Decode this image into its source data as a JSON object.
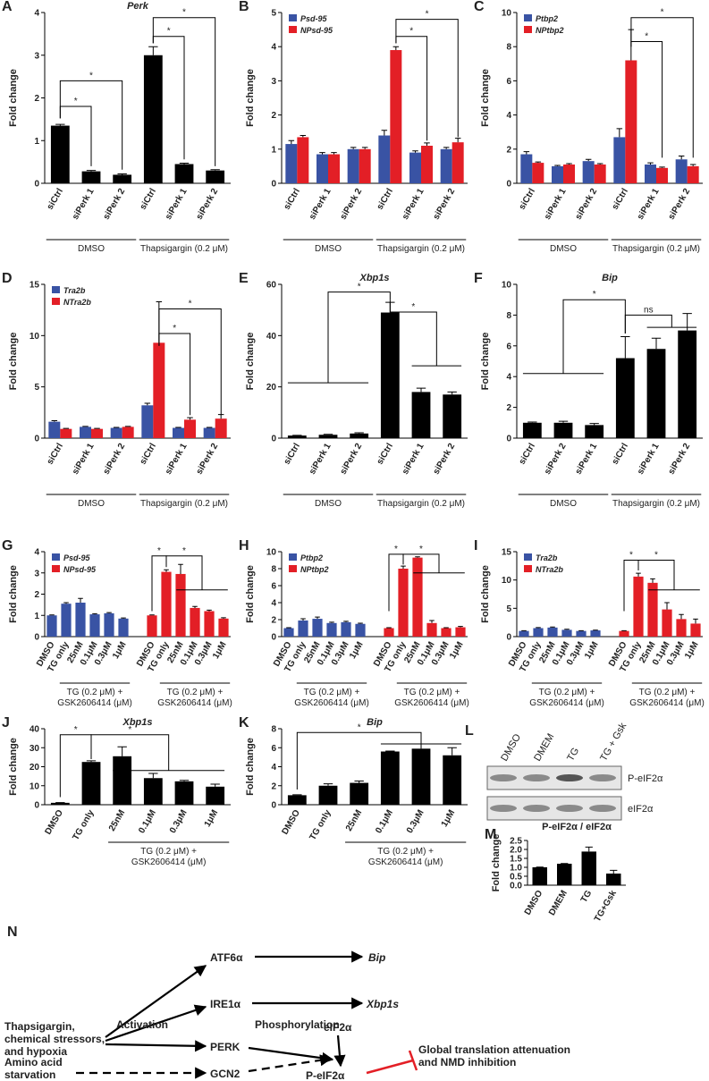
{
  "chart_data": [
    {
      "type": "bar",
      "panel": "A",
      "title": "Perk",
      "y_label": "Fold change",
      "categories": [
        "siCtrl",
        "siPerk 1",
        "siPerk 2",
        "siCtrl",
        "siPerk 1",
        "siPerk 2"
      ],
      "series": [
        {
          "color": "#000000",
          "values": [
            1.35,
            0.28,
            0.2,
            3.0,
            0.45,
            0.3
          ],
          "errors": [
            0.03,
            0.02,
            0.02,
            0.2,
            0.02,
            0.02
          ]
        }
      ],
      "ylim": [
        0,
        4
      ],
      "yticks": [
        0,
        1,
        2,
        3,
        4
      ],
      "groups": [
        [
          "DMSO"
        ],
        [
          "Thapsigargin (0.2 μM)"
        ]
      ],
      "annotations": [
        "*",
        "*",
        "*",
        "*"
      ]
    },
    {
      "type": "bar",
      "panel": "B",
      "y_label": "Fold change",
      "categories": [
        "siCtrl",
        "siPerk 1",
        "siPerk 2",
        "siCtrl",
        "siPerk 1",
        "siPerk 2"
      ],
      "series": [
        {
          "name": "Psd-95",
          "color": "#3953a4",
          "values": [
            1.15,
            0.85,
            1.0,
            1.4,
            0.9,
            1.0
          ],
          "errors": [
            0.1,
            0.05,
            0.05,
            0.15,
            0.05,
            0.05
          ]
        },
        {
          "name": "NPsd-95",
          "color": "#e31f26",
          "values": [
            1.35,
            0.85,
            1.0,
            3.9,
            1.1,
            1.2
          ],
          "errors": [
            0.05,
            0.05,
            0.05,
            0.1,
            0.08,
            0.12
          ]
        }
      ],
      "ylim": [
        0,
        5
      ],
      "yticks": [
        0,
        1,
        2,
        3,
        4,
        5
      ],
      "groups": [
        [
          "DMSO"
        ],
        [
          "Thapsigargin (0.2 μM)"
        ]
      ],
      "annotations": [
        "*",
        "*"
      ]
    },
    {
      "type": "bar",
      "panel": "C",
      "y_label": "Fold change",
      "categories": [
        "siCtrl",
        "siPerk 1",
        "siPerk 2",
        "siCtrl",
        "siPerk 1",
        "siPerk 2"
      ],
      "series": [
        {
          "name": "Ptbp2",
          "color": "#3953a4",
          "values": [
            1.7,
            1.0,
            1.3,
            2.7,
            1.1,
            1.4
          ],
          "errors": [
            0.15,
            0.05,
            0.1,
            0.5,
            0.1,
            0.2
          ]
        },
        {
          "name": "NPtbp2",
          "color": "#e31f26",
          "values": [
            1.2,
            1.1,
            1.1,
            7.2,
            0.9,
            1.0
          ],
          "errors": [
            0.05,
            0.05,
            0.05,
            1.8,
            0.05,
            0.1
          ]
        }
      ],
      "ylim": [
        0,
        10
      ],
      "yticks": [
        0,
        2,
        4,
        6,
        8,
        10
      ],
      "groups": [
        [
          "DMSO"
        ],
        [
          "Thapsigargin (0.2 μM)"
        ]
      ],
      "annotations": [
        "*",
        "*"
      ]
    },
    {
      "type": "bar",
      "panel": "D",
      "y_label": "Fold change",
      "categories": [
        "siCtrl",
        "siPerk 1",
        "siPerk 2",
        "siCtrl",
        "siPerk 1",
        "siPerk 2"
      ],
      "series": [
        {
          "name": "Tra2b",
          "color": "#3953a4",
          "values": [
            1.6,
            1.1,
            1.0,
            3.2,
            1.0,
            1.0
          ],
          "errors": [
            0.1,
            0.05,
            0.05,
            0.2,
            0.05,
            0.05
          ]
        },
        {
          "name": "NTra2b",
          "color": "#e31f26",
          "values": [
            0.9,
            0.9,
            1.1,
            9.3,
            1.8,
            1.9
          ],
          "errors": [
            0.05,
            0.05,
            0.05,
            4.0,
            0.2,
            0.4
          ]
        }
      ],
      "ylim": [
        0,
        15
      ],
      "yticks": [
        0,
        5,
        10,
        15
      ],
      "groups": [
        [
          "DMSO"
        ],
        [
          "Thapsigargin (0.2 μM)"
        ]
      ],
      "annotations": [
        "*",
        "*"
      ]
    },
    {
      "type": "bar",
      "panel": "E",
      "title": "Xbp1s",
      "y_label": "Fold change",
      "categories": [
        "siCtrl",
        "siPerk 1",
        "siPerk 2",
        "siCtrl",
        "siPerk 1",
        "siPerk 2"
      ],
      "series": [
        {
          "color": "#000000",
          "values": [
            1,
            1.3,
            1.8,
            49,
            18,
            17
          ],
          "errors": [
            0.1,
            0.2,
            0.3,
            4,
            1.5,
            1
          ]
        }
      ],
      "ylim": [
        0,
        60
      ],
      "yticks": [
        0,
        20,
        40,
        60
      ],
      "groups": [
        [
          "DMSO"
        ],
        [
          "Thapsigargin (0.2 μM)"
        ]
      ],
      "annotations": [
        "*",
        "*"
      ]
    },
    {
      "type": "bar",
      "panel": "F",
      "title": "Bip",
      "y_label": "Fold change",
      "categories": [
        "siCtrl",
        "siPerk 2",
        "siPerk 1",
        "siCtrl",
        "siPerk 1",
        "siPerk 2"
      ],
      "series": [
        {
          "color": "#000000",
          "values": [
            1,
            1,
            0.85,
            5.2,
            5.8,
            7.0
          ],
          "errors": [
            0.05,
            0.1,
            0.1,
            1.4,
            0.7,
            1.1
          ]
        }
      ],
      "ylim": [
        0,
        10
      ],
      "yticks": [
        0,
        2,
        4,
        6,
        8,
        10
      ],
      "groups": [
        [
          "DMSO"
        ],
        [
          "Thapsigargin (0.2 μM)"
        ]
      ],
      "annotations": [
        "*",
        "ns"
      ]
    },
    {
      "type": "bar",
      "panel": "G",
      "y_label": "Fold change",
      "categories": [
        "DMSO",
        "TG only",
        "25nM",
        "0.1μM",
        "0.3μM",
        "1μM"
      ],
      "series": [
        {
          "name": "Psd-95",
          "color": "#3953a4",
          "values": [
            1.0,
            1.55,
            1.6,
            1.05,
            1.1,
            0.85
          ],
          "errors": [
            0.02,
            0.05,
            0.2,
            0.03,
            0.03,
            0.03
          ]
        },
        {
          "name": "NPsd-95",
          "color": "#e31f26",
          "values": [
            1.0,
            3.05,
            2.95,
            1.35,
            1.2,
            0.85
          ],
          "errors": [
            0.02,
            0.1,
            0.45,
            0.07,
            0.05,
            0.04
          ]
        }
      ],
      "ylim": [
        0,
        4
      ],
      "yticks": [
        0,
        1,
        2,
        3,
        4
      ],
      "groups": [
        [
          "TG (0.2 μM) +",
          "GSK2606414 (μM)"
        ],
        [
          "TG (0.2 μM) +",
          "GSK2606414 (μM)"
        ]
      ],
      "annotations": [
        "*",
        "*"
      ]
    },
    {
      "type": "bar",
      "panel": "H",
      "y_label": "Fold change",
      "categories": [
        "DMSO",
        "TG only",
        "25nM",
        "0.1μM",
        "0.3μM",
        "1μM"
      ],
      "series": [
        {
          "name": "Ptbp2",
          "color": "#3953a4",
          "values": [
            1.0,
            1.9,
            2.1,
            1.6,
            1.7,
            1.5
          ],
          "errors": [
            0.05,
            0.2,
            0.2,
            0.1,
            0.1,
            0.08
          ]
        },
        {
          "name": "NPtbp2",
          "color": "#e31f26",
          "values": [
            1.0,
            8.0,
            9.3,
            1.6,
            1.0,
            1.1
          ],
          "errors": [
            0.05,
            0.3,
            0.1,
            0.3,
            0.05,
            0.1
          ]
        }
      ],
      "ylim": [
        0,
        10
      ],
      "yticks": [
        0,
        2,
        4,
        6,
        8,
        10
      ],
      "groups": [
        [
          "TG (0.2 μM) +",
          "GSK2606414 (μM)"
        ],
        [
          "TG (0.2 μM) +",
          "GSK2606414 (μM)"
        ]
      ],
      "annotations": [
        "*",
        "*"
      ]
    },
    {
      "type": "bar",
      "panel": "I",
      "y_label": "Fold change",
      "categories": [
        "DMSO",
        "TG only",
        "25nM",
        "0.1μM",
        "0.3μM",
        "1μM"
      ],
      "series": [
        {
          "name": "Tra2b",
          "color": "#3953a4",
          "values": [
            1.0,
            1.5,
            1.6,
            1.2,
            1.0,
            1.1
          ],
          "errors": [
            0.05,
            0.1,
            0.1,
            0.1,
            0.05,
            0.05
          ]
        },
        {
          "name": "NTra2b",
          "color": "#e31f26",
          "values": [
            1.0,
            10.6,
            9.5,
            4.8,
            3.1,
            2.3
          ],
          "errors": [
            0.05,
            0.6,
            0.7,
            1.2,
            0.8,
            0.8
          ]
        }
      ],
      "ylim": [
        0,
        15
      ],
      "yticks": [
        0,
        5,
        10,
        15
      ],
      "groups": [
        [
          "TG (0.2 μM) +",
          "GSK2606414 (μM)"
        ],
        [
          "TG (0.2 μM) +",
          "GSK2606414 (μM)"
        ]
      ],
      "annotations": [
        "*",
        "*"
      ]
    },
    {
      "type": "bar",
      "panel": "J",
      "title": "Xbp1s",
      "y_label": "Fold change",
      "categories": [
        "DMSO",
        "TG only",
        "25nM",
        "0.1μM",
        "0.3μM",
        "1μM"
      ],
      "series": [
        {
          "color": "#000000",
          "values": [
            1,
            22.5,
            25.5,
            14,
            12.3,
            9.5
          ],
          "errors": [
            0.1,
            0.6,
            5,
            2.5,
            0.5,
            1.3
          ]
        }
      ],
      "ylim": [
        0,
        40
      ],
      "yticks": [
        0,
        10,
        20,
        30,
        40
      ],
      "groups": [
        [
          "TG (0.2 μM) +",
          "GSK2606414 (μM)"
        ]
      ],
      "annotations": [
        "*",
        "*"
      ]
    },
    {
      "type": "bar",
      "panel": "K",
      "title": "Bip",
      "y_label": "Fold change",
      "categories": [
        "DMSO",
        "TG only",
        "25nM",
        "0.1μM",
        "0.3μM",
        "1μM"
      ],
      "series": [
        {
          "color": "#000000",
          "values": [
            1,
            2.0,
            2.3,
            5.6,
            5.9,
            5.2
          ],
          "errors": [
            0.05,
            0.2,
            0.2,
            0.05,
            0.5,
            0.8
          ]
        }
      ],
      "ylim": [
        0,
        8
      ],
      "yticks": [
        0,
        2,
        4,
        6,
        8
      ],
      "groups": [
        [
          "TG (0.2 μM) +",
          "GSK2606414 (μM)"
        ]
      ],
      "annotations": [
        "*"
      ]
    },
    {
      "type": "bar",
      "panel": "M",
      "title": "P-eIF2α / eIF2α",
      "y_label": "Fold change",
      "categories": [
        "DMSO",
        "DMEM",
        "TG",
        "TG+Gsk"
      ],
      "series": [
        {
          "color": "#000000",
          "values": [
            1.0,
            1.2,
            1.88,
            0.65
          ],
          "errors": [
            0.01,
            0.01,
            0.25,
            0.18
          ]
        }
      ],
      "ylim": [
        0,
        2.5
      ],
      "yticks": [
        {
          "value": 0,
          "label": "0.0"
        },
        0.5,
        {
          "value": 1,
          "label": "1.0"
        },
        1.5,
        {
          "value": 2,
          "label": "2.0"
        },
        2.5
      ],
      "groups": [],
      "annotations": []
    }
  ],
  "blot": {
    "panel": "L",
    "lanes": [
      "DMSO",
      "DMEM",
      "TG",
      "TG + Gsk"
    ],
    "bands": [
      "P-eIF2α",
      "eIF2α"
    ]
  },
  "diagram": {
    "panel": "N",
    "stimulus": [
      "Thapsigargin,",
      "chemical stressors,",
      "and hypoxia"
    ],
    "starvation": [
      "Amino acid",
      "starvation"
    ],
    "activation": "Activation",
    "phosphorylation": "Phosphorylation",
    "atf6": "ATF6α",
    "ire1": "IRE1α",
    "perk": "PERK",
    "gcn2": "GCN2",
    "bip": "Bip",
    "xbp1s": "Xbp1s",
    "eif2a": "eIF2α",
    "peif2a": "P-eIF2α",
    "outcome": [
      "Global translation attenuation",
      "and NMD inhibition"
    ]
  }
}
